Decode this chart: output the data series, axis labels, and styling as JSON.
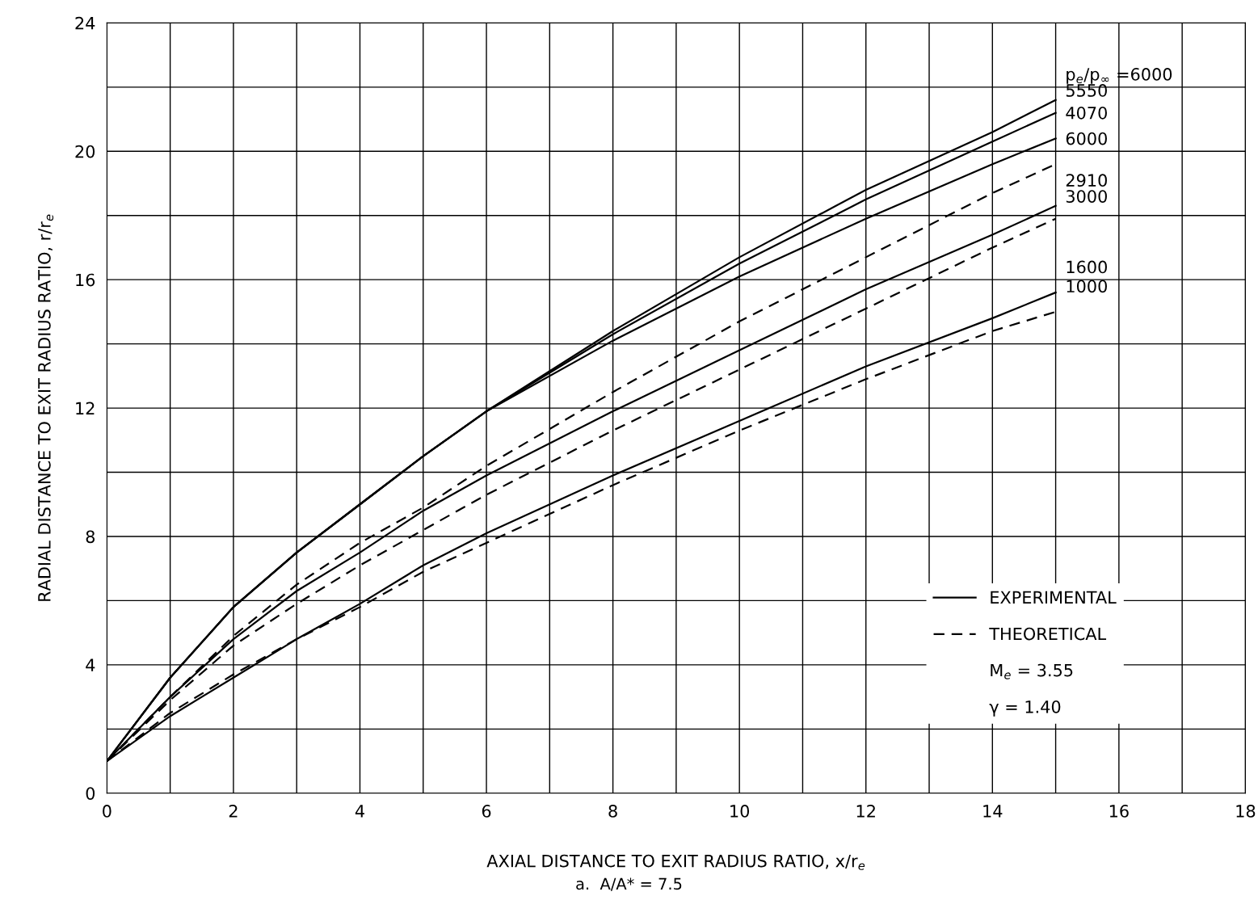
{
  "chart_data": {
    "type": "line",
    "xlabel": "AXIAL DISTANCE TO EXIT RADIUS RATIO, x/r$_{e}$",
    "ylabel": "RADIAL DISTANCE TO EXIT RADIUS RATIO, r/r$_{e}$",
    "x": [
      0,
      1,
      2,
      3,
      4,
      5,
      6,
      8,
      10,
      12,
      14,
      15
    ],
    "series": [
      {
        "name": "p$_{e}$/p$_{∞}$ =6000",
        "color": "#000000",
        "line_style": "solid",
        "values": [
          1,
          3.6,
          5.8,
          7.5,
          9.0,
          10.5,
          11.9,
          14.4,
          16.7,
          18.8,
          20.6,
          21.6
        ]
      },
      {
        "name": "5550",
        "color": "#000000",
        "line_style": "solid",
        "values": [
          1,
          3.6,
          5.8,
          7.5,
          9.0,
          10.5,
          11.9,
          14.3,
          16.5,
          18.5,
          20.3,
          21.2
        ]
      },
      {
        "name": "4070",
        "color": "#000000",
        "line_style": "solid",
        "values": [
          1,
          3.6,
          5.8,
          7.5,
          9.0,
          10.5,
          11.9,
          14.1,
          16.1,
          17.9,
          19.6,
          20.4
        ]
      },
      {
        "name": "6000",
        "color": "#000000",
        "line_style": "dashed",
        "values": [
          1,
          3.0,
          4.9,
          6.5,
          7.8,
          8.9,
          10.2,
          12.5,
          14.7,
          16.7,
          18.7,
          19.6
        ]
      },
      {
        "name": "2910",
        "color": "#000000",
        "line_style": "solid",
        "values": [
          1,
          3.0,
          4.8,
          6.3,
          7.5,
          8.8,
          9.9,
          11.9,
          13.8,
          15.7,
          17.4,
          18.3
        ]
      },
      {
        "name": "3000",
        "color": "#000000",
        "line_style": "dashed",
        "values": [
          1,
          2.9,
          4.6,
          5.9,
          7.1,
          8.2,
          9.3,
          11.3,
          13.2,
          15.1,
          17.0,
          17.9
        ]
      },
      {
        "name": "1600",
        "color": "#000000",
        "line_style": "solid",
        "values": [
          1,
          2.4,
          3.6,
          4.8,
          5.9,
          7.1,
          8.1,
          9.9,
          11.6,
          13.3,
          14.8,
          15.6
        ]
      },
      {
        "name": "1000",
        "color": "#000000",
        "line_style": "dashed",
        "values": [
          1,
          2.5,
          3.7,
          4.8,
          5.8,
          6.9,
          7.8,
          9.6,
          11.3,
          12.9,
          14.4,
          15.0
        ]
      }
    ],
    "xlim": [
      0,
      18
    ],
    "ylim": [
      0,
      24
    ],
    "xticks": [
      0,
      {
        "value": 1,
        "label": null
      },
      2,
      {
        "value": 3,
        "label": null
      },
      4,
      {
        "value": 5,
        "label": null
      },
      6,
      {
        "value": 7,
        "label": null
      },
      8,
      {
        "value": 9,
        "label": null
      },
      10,
      {
        "value": 11,
        "label": null
      },
      12,
      {
        "value": 13,
        "label": null
      },
      14,
      {
        "value": 15,
        "label": null
      },
      16,
      {
        "value": 17,
        "label": null
      },
      18
    ],
    "yticks": [
      0,
      {
        "value": 2,
        "label": null
      },
      4,
      {
        "value": 6,
        "label": null
      },
      8,
      {
        "value": 10,
        "label": null
      },
      12,
      {
        "value": 14,
        "label": null
      },
      16,
      {
        "value": 18,
        "label": null
      },
      20,
      {
        "value": 22,
        "label": null
      },
      24
    ],
    "grid": true,
    "annotations": [
      "EXPERIMENTAL",
      "THEORETICAL",
      "M$_{e}$ = 3.55",
      "γ = 1.40",
      "a.  A/A* = 7.5"
    ]
  }
}
